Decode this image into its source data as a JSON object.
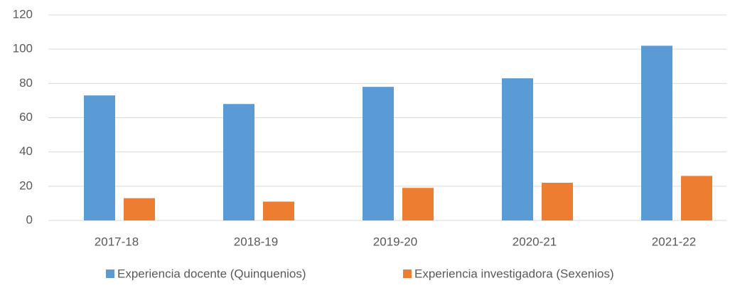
{
  "chart_data": {
    "type": "bar",
    "categories": [
      "2017-18",
      "2018-19",
      "2019-20",
      "2020-21",
      "2021-22"
    ],
    "series": [
      {
        "name": "Experiencia docente (Quinquenios)",
        "color": "#5b9bd5",
        "values": [
          73,
          68,
          78,
          83,
          102
        ]
      },
      {
        "name": "Experiencia investigadora (Sexenios)",
        "color": "#ed7d31",
        "values": [
          13,
          11,
          19,
          22,
          26
        ]
      }
    ],
    "ylim": [
      0,
      120
    ],
    "yticks": [
      0,
      20,
      40,
      60,
      80,
      100,
      120
    ],
    "grid": true,
    "legend": "bottom"
  }
}
